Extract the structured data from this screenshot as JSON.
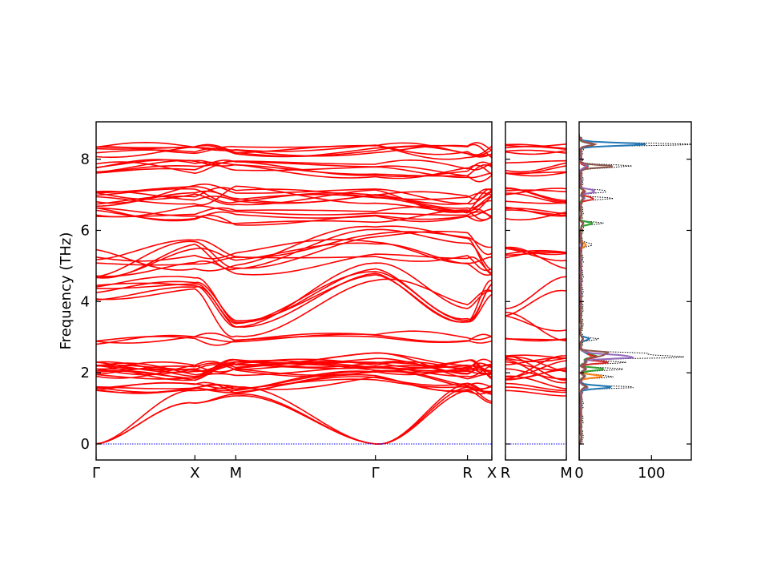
{
  "chart_data": {
    "type": "line",
    "ylabel": "Frequency (THz)",
    "ylim": [
      -0.45,
      9.05
    ],
    "yticks": [
      0,
      2,
      4,
      6,
      8
    ],
    "band_color": "#ff0000",
    "zero_line_color": "#0000ff",
    "panels": [
      {
        "name": "band-path-1",
        "labels": [
          "Γ",
          "X",
          "M",
          "Γ",
          "R",
          "X"
        ],
        "positions": [
          0,
          0.5,
          0.7071,
          1.4142,
          1.8803,
          2.0036
        ],
        "acoustic_points": [
          {
            "label": "Γ",
            "frequency": 0
          },
          {
            "label": "Γ",
            "frequency": 0
          }
        ]
      },
      {
        "name": "band-path-2",
        "labels": [
          "R",
          "M"
        ],
        "positions": [
          0,
          0.5
        ]
      }
    ],
    "dos": {
      "xlabel": "",
      "xticks": [
        0,
        100
      ],
      "xlim": [
        0,
        155
      ],
      "peaks": [
        {
          "frequency": 8.42,
          "value": 135
        },
        {
          "frequency": 7.8,
          "value": 70
        },
        {
          "frequency": 7.1,
          "value": 40
        },
        {
          "frequency": 6.9,
          "value": 35
        },
        {
          "frequency": 6.2,
          "value": 25
        },
        {
          "frequency": 5.6,
          "value": 15
        },
        {
          "frequency": 2.95,
          "value": 18
        },
        {
          "frequency": 2.55,
          "value": 75
        },
        {
          "frequency": 2.45,
          "value": 155
        },
        {
          "frequency": 2.3,
          "value": 60
        },
        {
          "frequency": 2.1,
          "value": 50
        },
        {
          "frequency": 1.9,
          "value": 45
        },
        {
          "frequency": 1.6,
          "value": 65
        }
      ],
      "partial_colors": [
        "#1f77b4",
        "#ff7f0e",
        "#2ca02c",
        "#d62728",
        "#9467bd",
        "#8c564b"
      ]
    }
  }
}
